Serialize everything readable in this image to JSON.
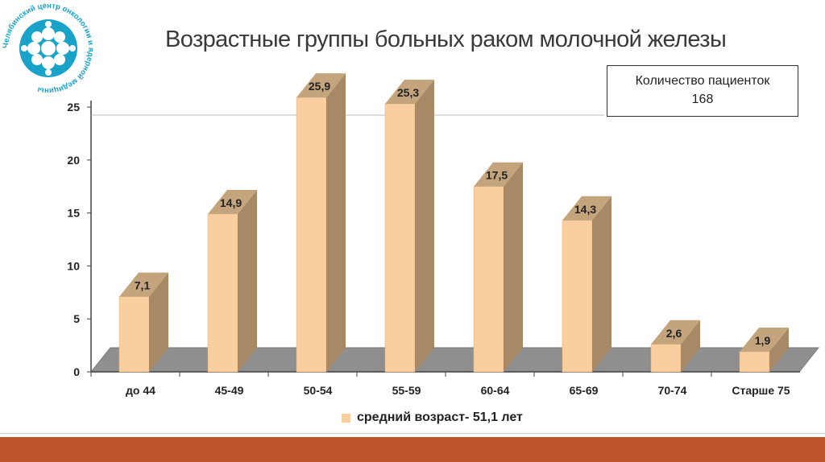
{
  "title": "Возрастные группы больных раком молочной железы",
  "info_box": {
    "line1": "Количество пациенток",
    "line2": "168"
  },
  "logo": {
    "ring_text": "Челябинский центр онкологии и ядерной медицины",
    "icon": "dotted-sphere-logo-icon",
    "color": "#1aa3c8"
  },
  "legend": {
    "label": "средний возраст- 51,1 лет"
  },
  "colors": {
    "bar_front": "#f9cf9f",
    "bar_side": "#a88966",
    "bar_top": "#c4a47d",
    "floor": "#8f8f8f",
    "footer": "#bd542c"
  },
  "chart_data": {
    "type": "bar",
    "categories": [
      "до 44",
      "45-49",
      "50-54",
      "55-59",
      "60-64",
      "65-69",
      "70-74",
      "Старше 75"
    ],
    "values": [
      7.1,
      14.9,
      25.9,
      25.3,
      17.5,
      14.3,
      2.6,
      1.9
    ],
    "value_labels": [
      "7,1",
      "14,9",
      "25,9",
      "25,3",
      "17,5",
      "14,3",
      "2,6",
      "1,9"
    ],
    "yticks": [
      0,
      5,
      10,
      15,
      20,
      25
    ],
    "ylim": [
      0,
      25
    ],
    "title": "Возрастные группы больных раком молочной железы",
    "xlabel": "",
    "ylabel": "",
    "series": [
      {
        "name": "средний возраст- 51,1 лет",
        "values": [
          7.1,
          14.9,
          25.9,
          25.3,
          17.5,
          14.3,
          2.6,
          1.9
        ]
      }
    ],
    "legend_position": "bottom",
    "grid": false
  }
}
